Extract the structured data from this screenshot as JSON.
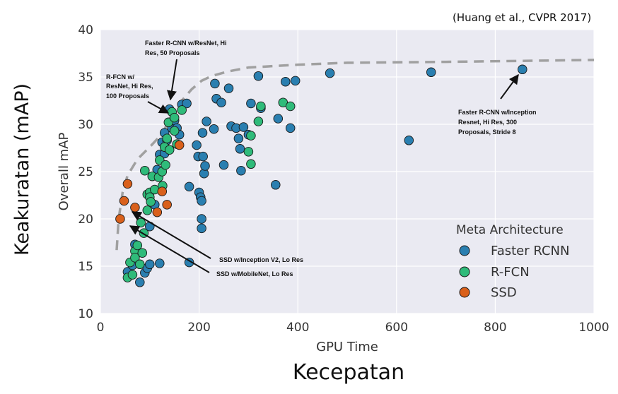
{
  "chart_data": {
    "type": "scatter",
    "xlabel": "GPU Time",
    "ylabel": "Overall mAP",
    "xlim": [
      0,
      1000
    ],
    "ylim": [
      10,
      40
    ],
    "xticks": [
      "0",
      "200",
      "400",
      "600",
      "800",
      "1000"
    ],
    "yticks": [
      "10",
      "15",
      "20",
      "25",
      "30",
      "35",
      "40"
    ],
    "grid": true,
    "legend": {
      "title": "Meta Architecture",
      "placement": "lower-right",
      "entries": [
        "Faster RCNN",
        "R-FCN",
        "SSD"
      ]
    },
    "colors": {
      "Faster RCNN": "#2a7fb0",
      "R-FCN": "#2fbb7a",
      "SSD": "#d9601b",
      "background": "#eaeaf2",
      "grid": "#ffffff",
      "frontier": "#a0a0a0"
    },
    "frontier": [
      [
        33,
        16.7
      ],
      [
        37,
        20
      ],
      [
        45,
        22.8
      ],
      [
        55,
        24.6
      ],
      [
        75,
        26.3
      ],
      [
        100,
        27.6
      ],
      [
        125,
        29
      ],
      [
        145,
        31
      ],
      [
        165,
        32.5
      ],
      [
        185,
        33.7
      ],
      [
        205,
        34.6
      ],
      [
        225,
        35.1
      ],
      [
        260,
        35.6
      ],
      [
        300,
        36
      ],
      [
        400,
        36.3
      ],
      [
        500,
        36.5
      ],
      [
        700,
        36.6
      ],
      [
        1000,
        36.8
      ]
    ],
    "series": [
      {
        "name": "Faster RCNN",
        "points": [
          [
            55,
            14.4
          ],
          [
            65,
            15.1
          ],
          [
            70,
            17.3
          ],
          [
            80,
            13.3
          ],
          [
            90,
            14.3
          ],
          [
            95,
            14.8
          ],
          [
            100,
            15.2
          ],
          [
            100,
            19.2
          ],
          [
            110,
            21.5
          ],
          [
            115,
            25.2
          ],
          [
            120,
            15.3
          ],
          [
            120,
            26.8
          ],
          [
            125,
            28.1
          ],
          [
            130,
            29.1
          ],
          [
            130,
            26.9
          ],
          [
            135,
            28.3
          ],
          [
            140,
            31.6
          ],
          [
            145,
            29.6
          ],
          [
            150,
            30.4
          ],
          [
            155,
            29.6
          ],
          [
            160,
            28.9
          ],
          [
            165,
            32.1
          ],
          [
            175,
            32.2
          ],
          [
            180,
            15.4
          ],
          [
            180,
            23.4
          ],
          [
            195,
            27.8
          ],
          [
            198,
            26.6
          ],
          [
            200,
            22.8
          ],
          [
            203,
            22.3
          ],
          [
            205,
            21.9
          ],
          [
            205,
            20
          ],
          [
            205,
            19
          ],
          [
            207,
            29.1
          ],
          [
            208,
            26.6
          ],
          [
            210,
            24.8
          ],
          [
            212,
            25.6
          ],
          [
            215,
            30.3
          ],
          [
            230,
            29.5
          ],
          [
            232,
            34.3
          ],
          [
            235,
            32.7
          ],
          [
            245,
            32.3
          ],
          [
            250,
            25.7
          ],
          [
            260,
            33.8
          ],
          [
            265,
            29.8
          ],
          [
            275,
            29.6
          ],
          [
            280,
            28.5
          ],
          [
            283,
            27.4
          ],
          [
            285,
            25.1
          ],
          [
            290,
            29.7
          ],
          [
            300,
            28.9
          ],
          [
            305,
            32.2
          ],
          [
            320,
            35.1
          ],
          [
            325,
            31.7
          ],
          [
            355,
            23.6
          ],
          [
            360,
            30.6
          ],
          [
            375,
            34.5
          ],
          [
            385,
            29.6
          ],
          [
            395,
            34.6
          ],
          [
            465,
            35.4
          ],
          [
            625,
            28.3
          ],
          [
            670,
            35.5
          ],
          [
            855,
            35.8
          ]
        ],
        "labels": {
          "frcnn_resnet": "Faster R-CNN w/ResNet, Hi Res, 50 Proposals",
          "frcnn_inception": "Faster R-CNN w/Inception Resnet, Hi Res, 300 Proposals, Stride 8"
        }
      },
      {
        "name": "R-FCN",
        "points": [
          [
            55,
            13.8
          ],
          [
            60,
            15.4
          ],
          [
            65,
            14.1
          ],
          [
            70,
            16.6
          ],
          [
            70,
            15.9
          ],
          [
            75,
            17.2
          ],
          [
            80,
            15.2
          ],
          [
            82,
            19.6
          ],
          [
            85,
            16.4
          ],
          [
            88,
            18.5
          ],
          [
            90,
            25.1
          ],
          [
            95,
            22.6
          ],
          [
            95,
            20.9
          ],
          [
            100,
            22.8
          ],
          [
            100,
            22.3
          ],
          [
            102,
            21.8
          ],
          [
            105,
            24.5
          ],
          [
            110,
            23.1
          ],
          [
            118,
            24.4
          ],
          [
            120,
            26.2
          ],
          [
            125,
            25
          ],
          [
            126,
            23.5
          ],
          [
            130,
            27.6
          ],
          [
            132,
            25.7
          ],
          [
            135,
            28.5
          ],
          [
            138,
            30.2
          ],
          [
            140,
            27.3
          ],
          [
            145,
            31.3
          ],
          [
            150,
            30.7
          ],
          [
            150,
            29.3
          ],
          [
            155,
            27.9
          ],
          [
            165,
            31.5
          ],
          [
            300,
            27.1
          ],
          [
            305,
            28.8
          ],
          [
            305,
            25.8
          ],
          [
            320,
            30.3
          ],
          [
            325,
            31.9
          ],
          [
            370,
            32.3
          ],
          [
            385,
            31.9
          ]
        ],
        "labels": {
          "rfcn_resnet": "R-FCN w/ ResNet, Hi Res, 100 Proposals"
        }
      },
      {
        "name": "SSD",
        "points": [
          [
            40,
            20
          ],
          [
            48,
            21.9
          ],
          [
            55,
            23.7
          ],
          [
            70,
            21.2
          ],
          [
            115,
            20.7
          ],
          [
            125,
            22.9
          ],
          [
            135,
            21.5
          ],
          [
            160,
            27.8
          ]
        ],
        "labels": {
          "ssd_inception": "SSD w/Inception V2, Lo Res",
          "ssd_mobilenet": "SSD w/MobileNet, Lo Res"
        }
      }
    ]
  },
  "overlay": {
    "citation": "(Huang et al., CVPR 2017)",
    "y_caption": "Keakuratan (mAP)",
    "x_caption": "Kecepatan"
  }
}
